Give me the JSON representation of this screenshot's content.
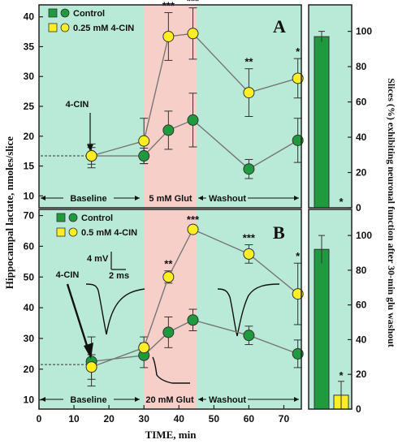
{
  "colors": {
    "background": "#b9ead8",
    "glut_band": "#f6cfc8",
    "control": "#1f9a3e",
    "cin": "#ffee22",
    "line": "#777777"
  },
  "xaxis": {
    "label": "TIME, min",
    "ticks": [
      "0",
      "10",
      "20",
      "30",
      "40",
      "50",
      "60",
      "70"
    ]
  },
  "yaxis_left": {
    "label": "Hippocampal lactate, nmoles/slice"
  },
  "yaxis_right": {
    "label": "Slices (%) exhibiting neuronal function after 30-min glu washout"
  },
  "chart_data": [
    {
      "panel": "A",
      "type": "line",
      "x": [
        15,
        30,
        37,
        44,
        60,
        74
      ],
      "xlim": [
        0,
        75
      ],
      "ylim": [
        8,
        42
      ],
      "yticks": [
        "10",
        "15",
        "20",
        "25",
        "30",
        "35",
        "40"
      ],
      "glut_band": [
        30,
        45
      ],
      "baseline_level": 16.7,
      "series": [
        {
          "name": "Control",
          "marker": "circle",
          "values": [
            16.7,
            16.7,
            21.0,
            22.7,
            14.5,
            19.3
          ],
          "errors": [
            1.4,
            1.3,
            3.2,
            4.5,
            1.6,
            3.7
          ]
        },
        {
          "name": "0.25 mM 4-CIN",
          "marker": "circle",
          "values": [
            16.7,
            19.2,
            36.7,
            37.2,
            27.3,
            29.7
          ],
          "errors": [
            2.0,
            3.8,
            4.0,
            4.3,
            4.0,
            3.3
          ]
        }
      ],
      "significance": [
        {
          "x": 37,
          "label": "***"
        },
        {
          "x": 44,
          "label": "***"
        },
        {
          "x": 60,
          "label": "**"
        },
        {
          "x": 74,
          "label": "*"
        }
      ],
      "phases": [
        "Baseline",
        "5 mM Glut",
        "Washout"
      ],
      "annotation": "4-CIN"
    },
    {
      "panel": "B",
      "type": "line",
      "x": [
        15,
        30,
        37,
        44,
        60,
        74
      ],
      "xlim": [
        0,
        75
      ],
      "ylim": [
        7,
        72
      ],
      "yticks": [
        "10",
        "20",
        "30",
        "40",
        "50",
        "60",
        "70"
      ],
      "glut_band": [
        30,
        45
      ],
      "baseline_level": 21.5,
      "series": [
        {
          "name": "Control",
          "marker": "circle",
          "values": [
            22.5,
            24.5,
            32.0,
            36.0,
            31.0,
            25.0
          ],
          "errors": [
            8.0,
            4.0,
            5.0,
            3.5,
            3.0,
            4.5
          ]
        },
        {
          "name": "0.5 mM 4-CIN",
          "marker": "circle",
          "values": [
            20.7,
            27.0,
            50.0,
            65.5,
            57.5,
            44.5
          ],
          "errors": [
            4.0,
            3.5,
            2.0,
            1.0,
            3.0,
            10.0
          ]
        }
      ],
      "significance": [
        {
          "x": 37,
          "label": "**"
        },
        {
          "x": 44,
          "label": "***"
        },
        {
          "x": 60,
          "label": "***"
        },
        {
          "x": 74,
          "label": "*"
        }
      ],
      "phases": [
        "Baseline",
        "20 mM Glut",
        "Washout"
      ],
      "annotation": "4-CIN",
      "scale_bar": {
        "vertical": "4 mV",
        "horizontal": "2 ms"
      }
    },
    {
      "panel": "A-right",
      "type": "bar",
      "categories": [
        "Control",
        "0.25 mM 4-CIN"
      ],
      "values": [
        97,
        0
      ],
      "errors": [
        3,
        0
      ],
      "ylim": [
        0,
        115
      ],
      "yticks": [
        "0",
        "20",
        "40",
        "60",
        "80",
        "100"
      ],
      "significance": [
        {
          "category": "0.25 mM 4-CIN",
          "label": "*"
        }
      ]
    },
    {
      "panel": "B-right",
      "type": "bar",
      "categories": [
        "Control",
        "0.5 mM 4-CIN"
      ],
      "values": [
        92,
        8
      ],
      "errors": [
        8,
        8
      ],
      "ylim": [
        0,
        115
      ],
      "yticks": [
        "0",
        "20",
        "40",
        "60",
        "80",
        "100"
      ],
      "significance": [
        {
          "category": "0.5 mM 4-CIN",
          "label": "*"
        }
      ]
    }
  ]
}
